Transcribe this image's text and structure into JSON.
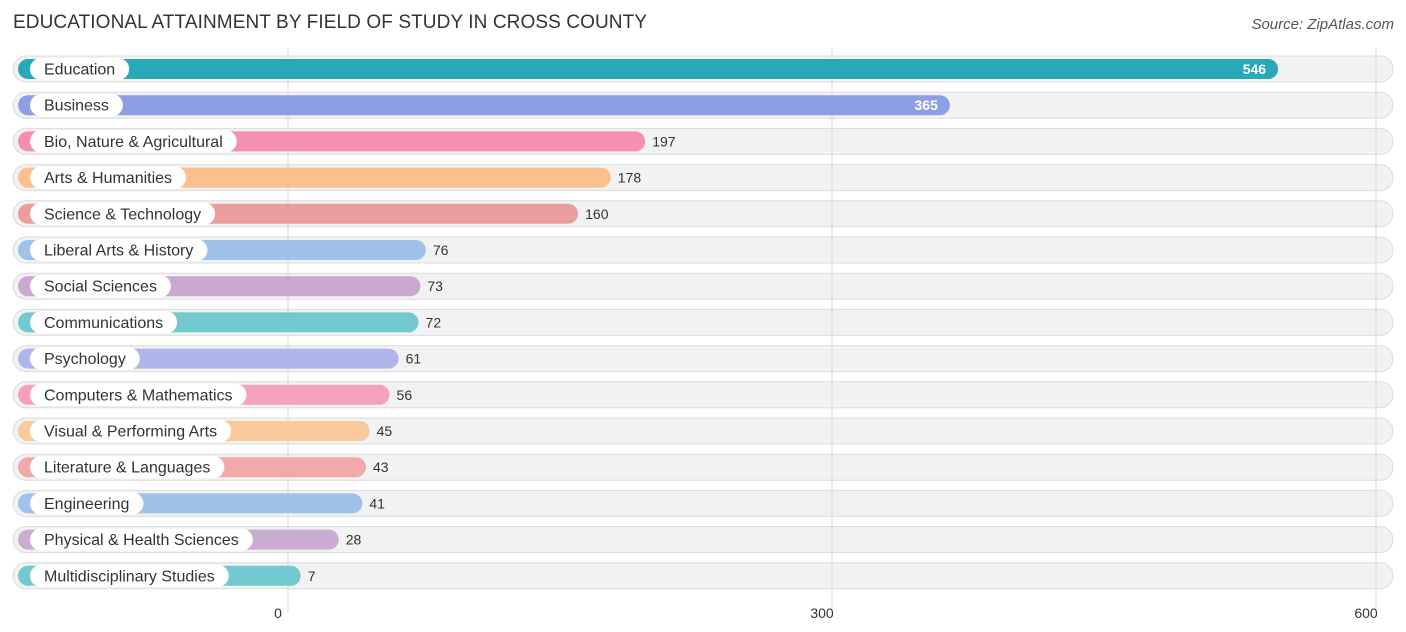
{
  "chart_data": {
    "type": "bar",
    "orientation": "horizontal",
    "title": "EDUCATIONAL ATTAINMENT BY FIELD OF STUDY IN CROSS COUNTY",
    "source": "Source: ZipAtlas.com",
    "categories": [
      "Education",
      "Business",
      "Bio, Nature & Agricultural",
      "Arts & Humanities",
      "Science & Technology",
      "Liberal Arts & History",
      "Social Sciences",
      "Communications",
      "Psychology",
      "Computers & Mathematics",
      "Visual & Performing Arts",
      "Literature & Languages",
      "Engineering",
      "Physical & Health Sciences",
      "Multidisciplinary Studies"
    ],
    "values": [
      546,
      365,
      197,
      178,
      160,
      76,
      73,
      72,
      61,
      56,
      45,
      43,
      41,
      28,
      7
    ],
    "value_labels": [
      "546",
      "365",
      "197",
      "178",
      "160",
      "76",
      "73",
      "72",
      "61",
      "56",
      "45",
      "43",
      "41",
      "28",
      "7"
    ],
    "colors": [
      "#29a8b8",
      "#8e9ee3",
      "#f48fb1",
      "#f9c08c",
      "#eb9e9e",
      "#9fc2ea",
      "#c9a9cf",
      "#72c9cf",
      "#b0b5ea",
      "#f5a0be",
      "#f9c89b",
      "#f1aaa8",
      "#9fc2ea",
      "#c9aed1",
      "#72c9cf"
    ],
    "xlim": [
      0,
      600
    ],
    "xticks": [
      0,
      300,
      600
    ],
    "xtick_labels": [
      "0",
      "300",
      "600"
    ],
    "xlabel": "",
    "ylabel": "",
    "grid": true,
    "legend": "none"
  }
}
